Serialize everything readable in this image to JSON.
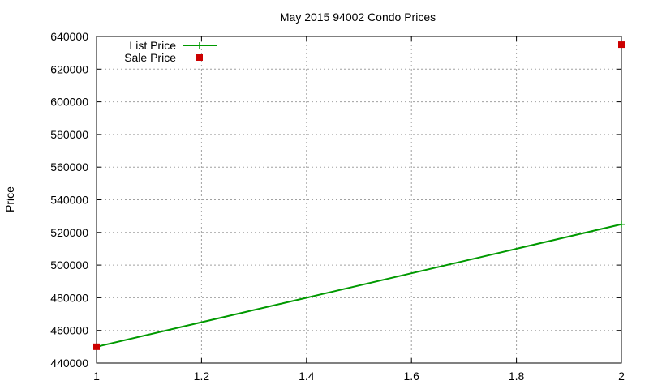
{
  "chart_data": {
    "type": "line",
    "title": "May 2015 94002 Condo Prices",
    "xlabel": "",
    "ylabel": "Price",
    "xlim": [
      1,
      2
    ],
    "ylim": [
      440000,
      640000
    ],
    "x_ticks": [
      1,
      1.2,
      1.4,
      1.6,
      1.8,
      2
    ],
    "x_tick_labels": [
      "1",
      "1.2",
      "1.4",
      "1.6",
      "1.8",
      "2"
    ],
    "y_ticks": [
      440000,
      460000,
      480000,
      500000,
      520000,
      540000,
      560000,
      580000,
      600000,
      620000,
      640000
    ],
    "y_tick_labels": [
      "440000",
      "460000",
      "480000",
      "500000",
      "520000",
      "540000",
      "560000",
      "580000",
      "600000",
      "620000",
      "640000"
    ],
    "grid": true,
    "legend_position": "top-left",
    "series": [
      {
        "name": "List Price",
        "kind": "line",
        "color": "#009900",
        "marker": "plus",
        "points": [
          {
            "x": 1,
            "y": 450000
          },
          {
            "x": 2,
            "y": 525000
          }
        ]
      },
      {
        "name": "Sale Price",
        "kind": "scatter",
        "color": "#cc0000",
        "marker": "square",
        "points": [
          {
            "x": 1,
            "y": 450000
          },
          {
            "x": 2,
            "y": 635000
          }
        ]
      }
    ]
  }
}
